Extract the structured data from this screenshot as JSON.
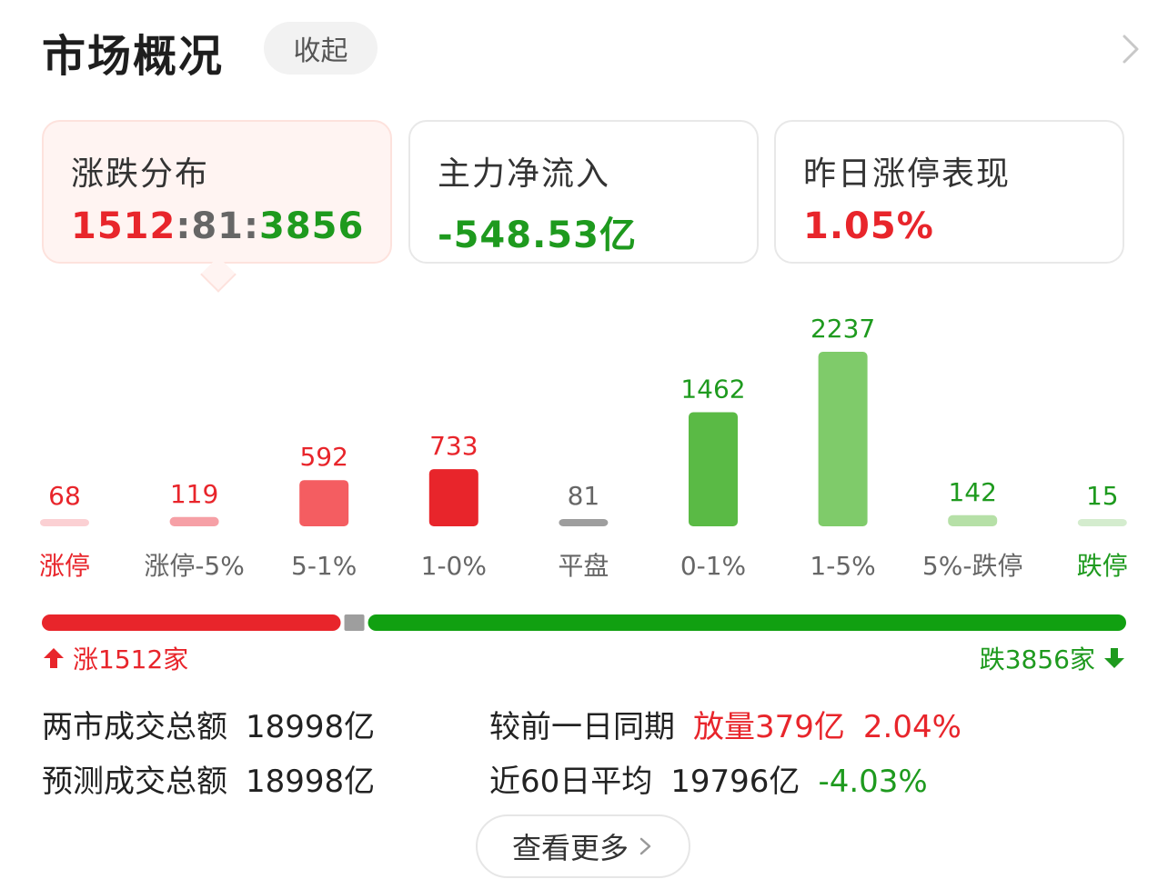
{
  "header": {
    "title": "市场概况",
    "collapse_label": "收起"
  },
  "cards": [
    {
      "title": "涨跌分布",
      "value_up": "1512",
      "sep1": ":",
      "value_flat": "81",
      "sep2": ":",
      "value_down": "3856"
    },
    {
      "title": "主力净流入",
      "value": "-548.53亿"
    },
    {
      "title": "昨日涨停表现",
      "value": "1.05%"
    }
  ],
  "chart_data": {
    "type": "bar",
    "categories": [
      "涨停",
      "涨停-5%",
      "5-1%",
      "1-0%",
      "平盘",
      "0-1%",
      "1-5%",
      "5%-跌停",
      "跌停"
    ],
    "values": [
      68,
      119,
      592,
      733,
      81,
      1462,
      2237,
      142,
      15
    ],
    "bar_colors": [
      "#fbd0d3",
      "#f6a0a6",
      "#f45d61",
      "#e8252b",
      "#9e9e9e",
      "#5aba45",
      "#7fcb6a",
      "#b6e0a7",
      "#d4ecce"
    ],
    "value_label_colors": [
      "#e8252b",
      "#e8252b",
      "#e8252b",
      "#e8252b",
      "#666666",
      "#1e9a1e",
      "#1e9a1e",
      "#1e9a1e",
      "#1e9a1e"
    ],
    "category_label_colors": [
      "#e8252b",
      "#666666",
      "#666666",
      "#666666",
      "#666666",
      "#666666",
      "#666666",
      "#666666",
      "#1e9a1e"
    ]
  },
  "ratio": {
    "up_count": 1512,
    "flat_count": 81,
    "down_count": 3856,
    "up_label": "涨1512家",
    "down_label": "跌3856家",
    "up_color": "#e8252b",
    "flat_color": "#9e9e9e",
    "down_color": "#11a011"
  },
  "stats": {
    "row1": {
      "label": "两市成交总额",
      "value": "18998亿",
      "compare_label": "较前一日同期",
      "compare_value": "放量379亿",
      "compare_pct": "2.04%"
    },
    "row2": {
      "label": "预测成交总额",
      "value": "18998亿",
      "compare_label": "近60日平均",
      "compare_value": "19796亿",
      "compare_pct": "-4.03%"
    }
  },
  "more_label": "查看更多"
}
